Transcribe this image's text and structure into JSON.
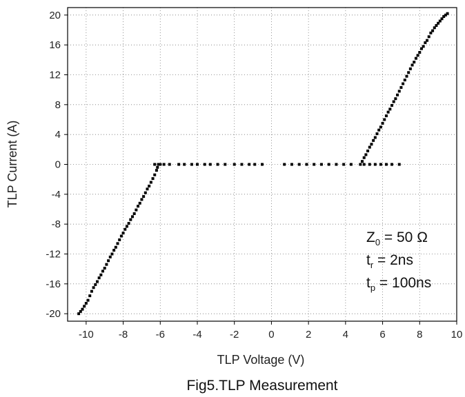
{
  "chart_data": {
    "type": "scatter",
    "title": "",
    "caption": "Fig5.TLP Measurement",
    "xlabel": "TLP Voltage (V)",
    "ylabel": "TLP Current (A)",
    "xlim": [
      -11,
      10
    ],
    "ylim": [
      -21,
      21
    ],
    "xticks": [
      -10,
      -8,
      -6,
      -4,
      -2,
      0,
      2,
      4,
      6,
      8,
      10
    ],
    "yticks": [
      -20,
      -16,
      -12,
      -8,
      -4,
      0,
      4,
      8,
      12,
      16,
      20
    ],
    "grid": true,
    "series": [
      {
        "points": [
          [
            -10.4,
            -20.0
          ],
          [
            -10.3,
            -19.7
          ],
          [
            -10.2,
            -19.4
          ],
          [
            -10.1,
            -19.0
          ],
          [
            -10.0,
            -18.6
          ],
          [
            -9.9,
            -18.2
          ],
          [
            -9.8,
            -17.6
          ],
          [
            -9.7,
            -17.0
          ],
          [
            -9.6,
            -16.5
          ],
          [
            -9.5,
            -16.1
          ],
          [
            -9.4,
            -15.7
          ],
          [
            -9.3,
            -15.2
          ],
          [
            -9.2,
            -14.8
          ],
          [
            -9.1,
            -14.3
          ],
          [
            -9.0,
            -13.9
          ],
          [
            -8.9,
            -13.4
          ],
          [
            -8.8,
            -12.9
          ],
          [
            -8.7,
            -12.4
          ],
          [
            -8.6,
            -12.0
          ],
          [
            -8.5,
            -11.5
          ],
          [
            -8.4,
            -11.1
          ],
          [
            -8.3,
            -10.6
          ],
          [
            -8.2,
            -10.1
          ],
          [
            -8.1,
            -9.6
          ],
          [
            -8.0,
            -9.2
          ],
          [
            -7.9,
            -8.7
          ],
          [
            -7.8,
            -8.3
          ],
          [
            -7.7,
            -7.9
          ],
          [
            -7.6,
            -7.4
          ],
          [
            -7.5,
            -7.0
          ],
          [
            -7.4,
            -6.6
          ],
          [
            -7.3,
            -6.1
          ],
          [
            -7.2,
            -5.6
          ],
          [
            -7.1,
            -5.2
          ],
          [
            -7.0,
            -4.7
          ],
          [
            -6.9,
            -4.3
          ],
          [
            -6.8,
            -3.8
          ],
          [
            -6.7,
            -3.3
          ],
          [
            -6.6,
            -2.9
          ],
          [
            -6.5,
            -2.4
          ],
          [
            -6.4,
            -1.9
          ],
          [
            -6.3,
            -1.4
          ],
          [
            -6.2,
            -0.8
          ],
          [
            -6.15,
            -0.4
          ],
          [
            -6.1,
            0.0
          ],
          [
            -6.3,
            0.0
          ],
          [
            -6.0,
            0.0
          ],
          [
            -5.8,
            0.0
          ],
          [
            -5.5,
            0.0
          ],
          [
            -5.0,
            0.0
          ],
          [
            -4.7,
            0.0
          ],
          [
            -4.3,
            0.0
          ],
          [
            -4.0,
            0.0
          ],
          [
            -3.6,
            0.0
          ],
          [
            -3.3,
            0.0
          ],
          [
            -2.9,
            0.0
          ],
          [
            -2.5,
            0.0
          ],
          [
            -2.0,
            0.0
          ],
          [
            -1.6,
            0.0
          ],
          [
            -1.2,
            0.0
          ],
          [
            -0.9,
            0.0
          ],
          [
            -0.5,
            0.0
          ]
        ]
      },
      {
        "points": [
          [
            0.7,
            0.0
          ],
          [
            1.1,
            0.0
          ],
          [
            1.5,
            0.0
          ],
          [
            1.9,
            0.0
          ],
          [
            2.3,
            0.0
          ],
          [
            2.7,
            0.0
          ],
          [
            3.1,
            0.0
          ],
          [
            3.5,
            0.0
          ],
          [
            3.9,
            0.0
          ],
          [
            4.3,
            0.0
          ],
          [
            4.8,
            0.0
          ],
          [
            5.0,
            0.0
          ],
          [
            5.3,
            0.0
          ],
          [
            5.6,
            0.0
          ],
          [
            5.9,
            0.0
          ],
          [
            6.2,
            0.0
          ],
          [
            6.5,
            0.0
          ],
          [
            6.9,
            0.0
          ],
          [
            4.9,
            0.4
          ],
          [
            5.0,
            0.9
          ],
          [
            5.1,
            1.3
          ],
          [
            5.2,
            1.8
          ],
          [
            5.3,
            2.3
          ],
          [
            5.4,
            2.7
          ],
          [
            5.5,
            3.2
          ],
          [
            5.6,
            3.6
          ],
          [
            5.7,
            4.1
          ],
          [
            5.8,
            4.6
          ],
          [
            5.9,
            5.0
          ],
          [
            6.0,
            5.5
          ],
          [
            6.1,
            6.0
          ],
          [
            6.2,
            6.5
          ],
          [
            6.3,
            7.0
          ],
          [
            6.4,
            7.4
          ],
          [
            6.5,
            7.9
          ],
          [
            6.6,
            8.4
          ],
          [
            6.7,
            8.8
          ],
          [
            6.8,
            9.3
          ],
          [
            6.9,
            9.8
          ],
          [
            7.0,
            10.3
          ],
          [
            7.1,
            10.8
          ],
          [
            7.2,
            11.3
          ],
          [
            7.3,
            11.8
          ],
          [
            7.4,
            12.3
          ],
          [
            7.5,
            12.8
          ],
          [
            7.6,
            13.3
          ],
          [
            7.7,
            13.7
          ],
          [
            7.8,
            14.2
          ],
          [
            7.9,
            14.6
          ],
          [
            8.0,
            15.0
          ],
          [
            8.1,
            15.5
          ],
          [
            8.2,
            15.8
          ],
          [
            8.3,
            16.3
          ],
          [
            8.4,
            16.6
          ],
          [
            8.5,
            17.1
          ],
          [
            8.6,
            17.6
          ],
          [
            8.7,
            17.9
          ],
          [
            8.8,
            18.3
          ],
          [
            8.9,
            18.6
          ],
          [
            9.0,
            18.9
          ],
          [
            9.1,
            19.2
          ],
          [
            9.2,
            19.5
          ],
          [
            9.3,
            19.8
          ],
          [
            9.4,
            20.0
          ],
          [
            9.5,
            20.2
          ]
        ]
      }
    ],
    "annotation": {
      "z_main": "Z",
      "z_sub": "0",
      "z_rest": " = 50 Ω",
      "tr_main": "t",
      "tr_sub": "r",
      "tr_rest": " = 2ns",
      "tp_main": "t",
      "tp_sub": "p",
      "tp_rest": " = 100ns"
    }
  }
}
